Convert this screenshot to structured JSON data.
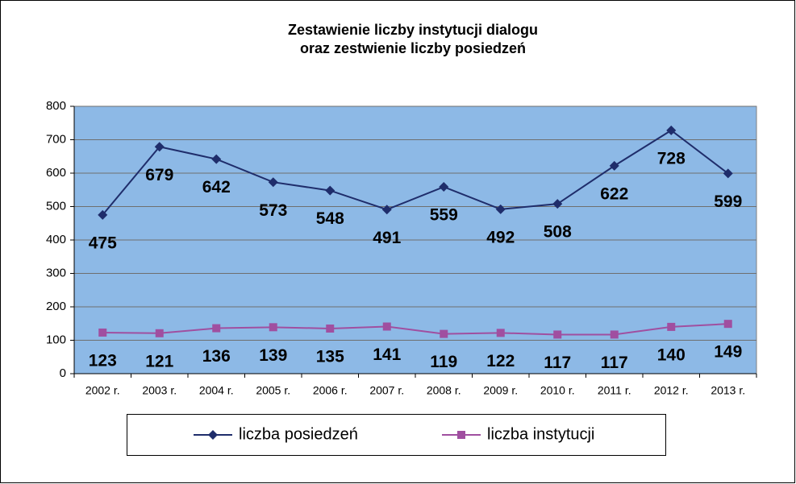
{
  "chart_data": {
    "type": "line",
    "title": [
      "Zestawienie liczby instytucji dialogu",
      "oraz zestwienie liczby posiedzeń"
    ],
    "categories": [
      "2002 r.",
      "2003 r.",
      "2004 r.",
      "2005 r.",
      "2006 r.",
      "2007 r.",
      "2008 r.",
      "2009 r.",
      "2010 r.",
      "2011 r.",
      "2012 r.",
      "2013 r."
    ],
    "series": [
      {
        "name": "liczba posiedzeń",
        "color": "#1f2d6b",
        "marker": "diamond",
        "values": [
          475,
          679,
          642,
          573,
          548,
          491,
          559,
          492,
          508,
          622,
          728,
          599
        ]
      },
      {
        "name": "liczba instytucji",
        "color": "#a04fa0",
        "marker": "square",
        "values": [
          123,
          121,
          136,
          139,
          135,
          141,
          119,
          122,
          117,
          117,
          140,
          149
        ]
      }
    ],
    "ylim": [
      0,
      800
    ],
    "yticks": [
      0,
      100,
      200,
      300,
      400,
      500,
      600,
      700,
      800
    ],
    "grid": true,
    "legend": "bottom",
    "plot_background": "#8db9e6"
  }
}
